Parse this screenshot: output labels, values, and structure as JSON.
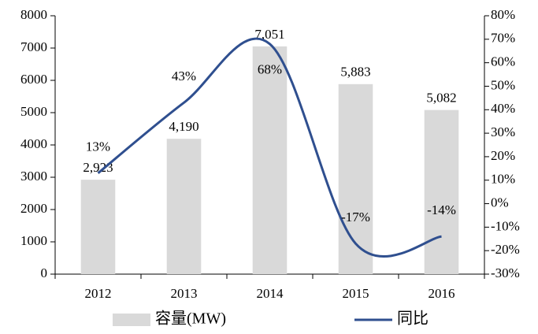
{
  "chart_data": {
    "type": "bar_line",
    "categories": [
      "2012",
      "2013",
      "2014",
      "2015",
      "2016"
    ],
    "series": [
      {
        "name": "容量(MW)",
        "type": "bar",
        "color": "#d9d9d9",
        "values": [
          2923,
          4190,
          7051,
          5883,
          5082
        ],
        "value_labels": [
          "2,923",
          "4,190",
          "7,051",
          "5,883",
          "5,082"
        ]
      },
      {
        "name": "同比",
        "type": "line",
        "axis": "y2",
        "color": "#2f4f8f",
        "values": [
          13,
          43,
          68,
          -17,
          -14
        ],
        "value_labels": [
          "13%",
          "43%",
          "68%",
          "-17%",
          "-14%"
        ]
      }
    ],
    "ylim": [
      0,
      8000
    ],
    "yticks": [
      0,
      1000,
      2000,
      3000,
      4000,
      5000,
      6000,
      7000,
      8000
    ],
    "y2lim": [
      -30,
      80
    ],
    "y2ticks": [
      {
        "value": -30,
        "label": "-30%"
      },
      {
        "value": -20,
        "label": "-20%"
      },
      {
        "value": -10,
        "label": "-10%"
      },
      {
        "value": 0,
        "label": "0%"
      },
      {
        "value": 10,
        "label": "10%"
      },
      {
        "value": 20,
        "label": "20%"
      },
      {
        "value": 30,
        "label": "30%"
      },
      {
        "value": 40,
        "label": "40%"
      },
      {
        "value": 50,
        "label": "50%"
      },
      {
        "value": 60,
        "label": "60%"
      },
      {
        "value": 70,
        "label": "70%"
      },
      {
        "value": 80,
        "label": "80%"
      }
    ],
    "legend": "bottom"
  }
}
